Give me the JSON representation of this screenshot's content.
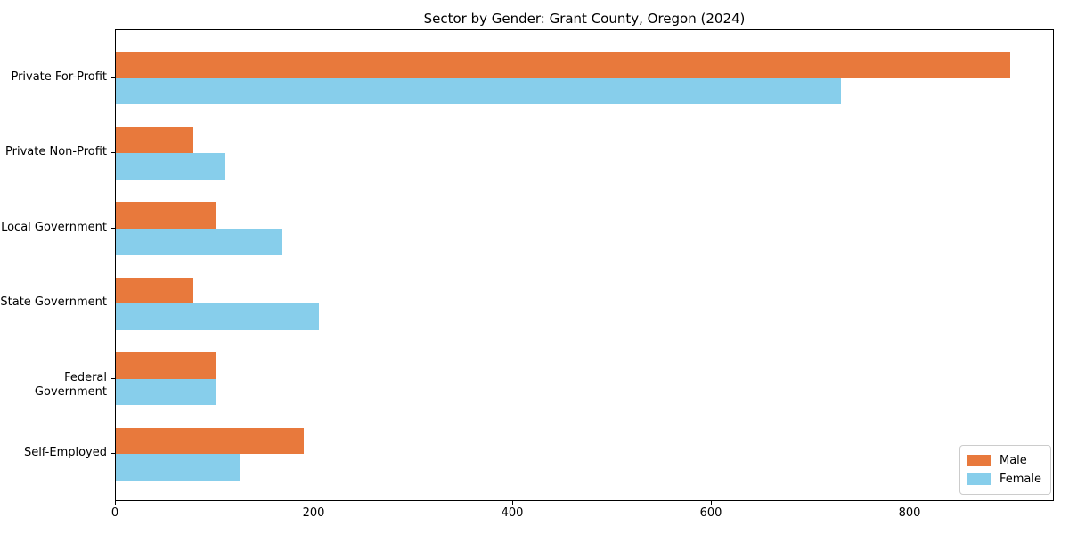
{
  "title": "Sector by Gender: Grant County, Oregon (2024)",
  "chart_data": {
    "type": "bar",
    "orientation": "horizontal",
    "title": "Sector by Gender: Grant County, Oregon (2024)",
    "categories": [
      "Private For-Profit",
      "Private Non-Profit",
      "Local Government",
      "State Government",
      "Federal Government",
      "Self-Employed"
    ],
    "series": [
      {
        "name": "Male",
        "color": "#e8793c",
        "values": [
          900,
          78,
          100,
          78,
          100,
          189
        ]
      },
      {
        "name": "Female",
        "color": "#87ceeb",
        "values": [
          730,
          110,
          168,
          204,
          100,
          125
        ]
      }
    ],
    "xlabel": "",
    "ylabel": "",
    "x_ticks": [
      0,
      200,
      400,
      600,
      800
    ],
    "xlim": [
      0,
      945
    ],
    "grid": false,
    "legend_position": "lower right",
    "bar_group_order_top_to_bottom": [
      "Male",
      "Female"
    ]
  }
}
